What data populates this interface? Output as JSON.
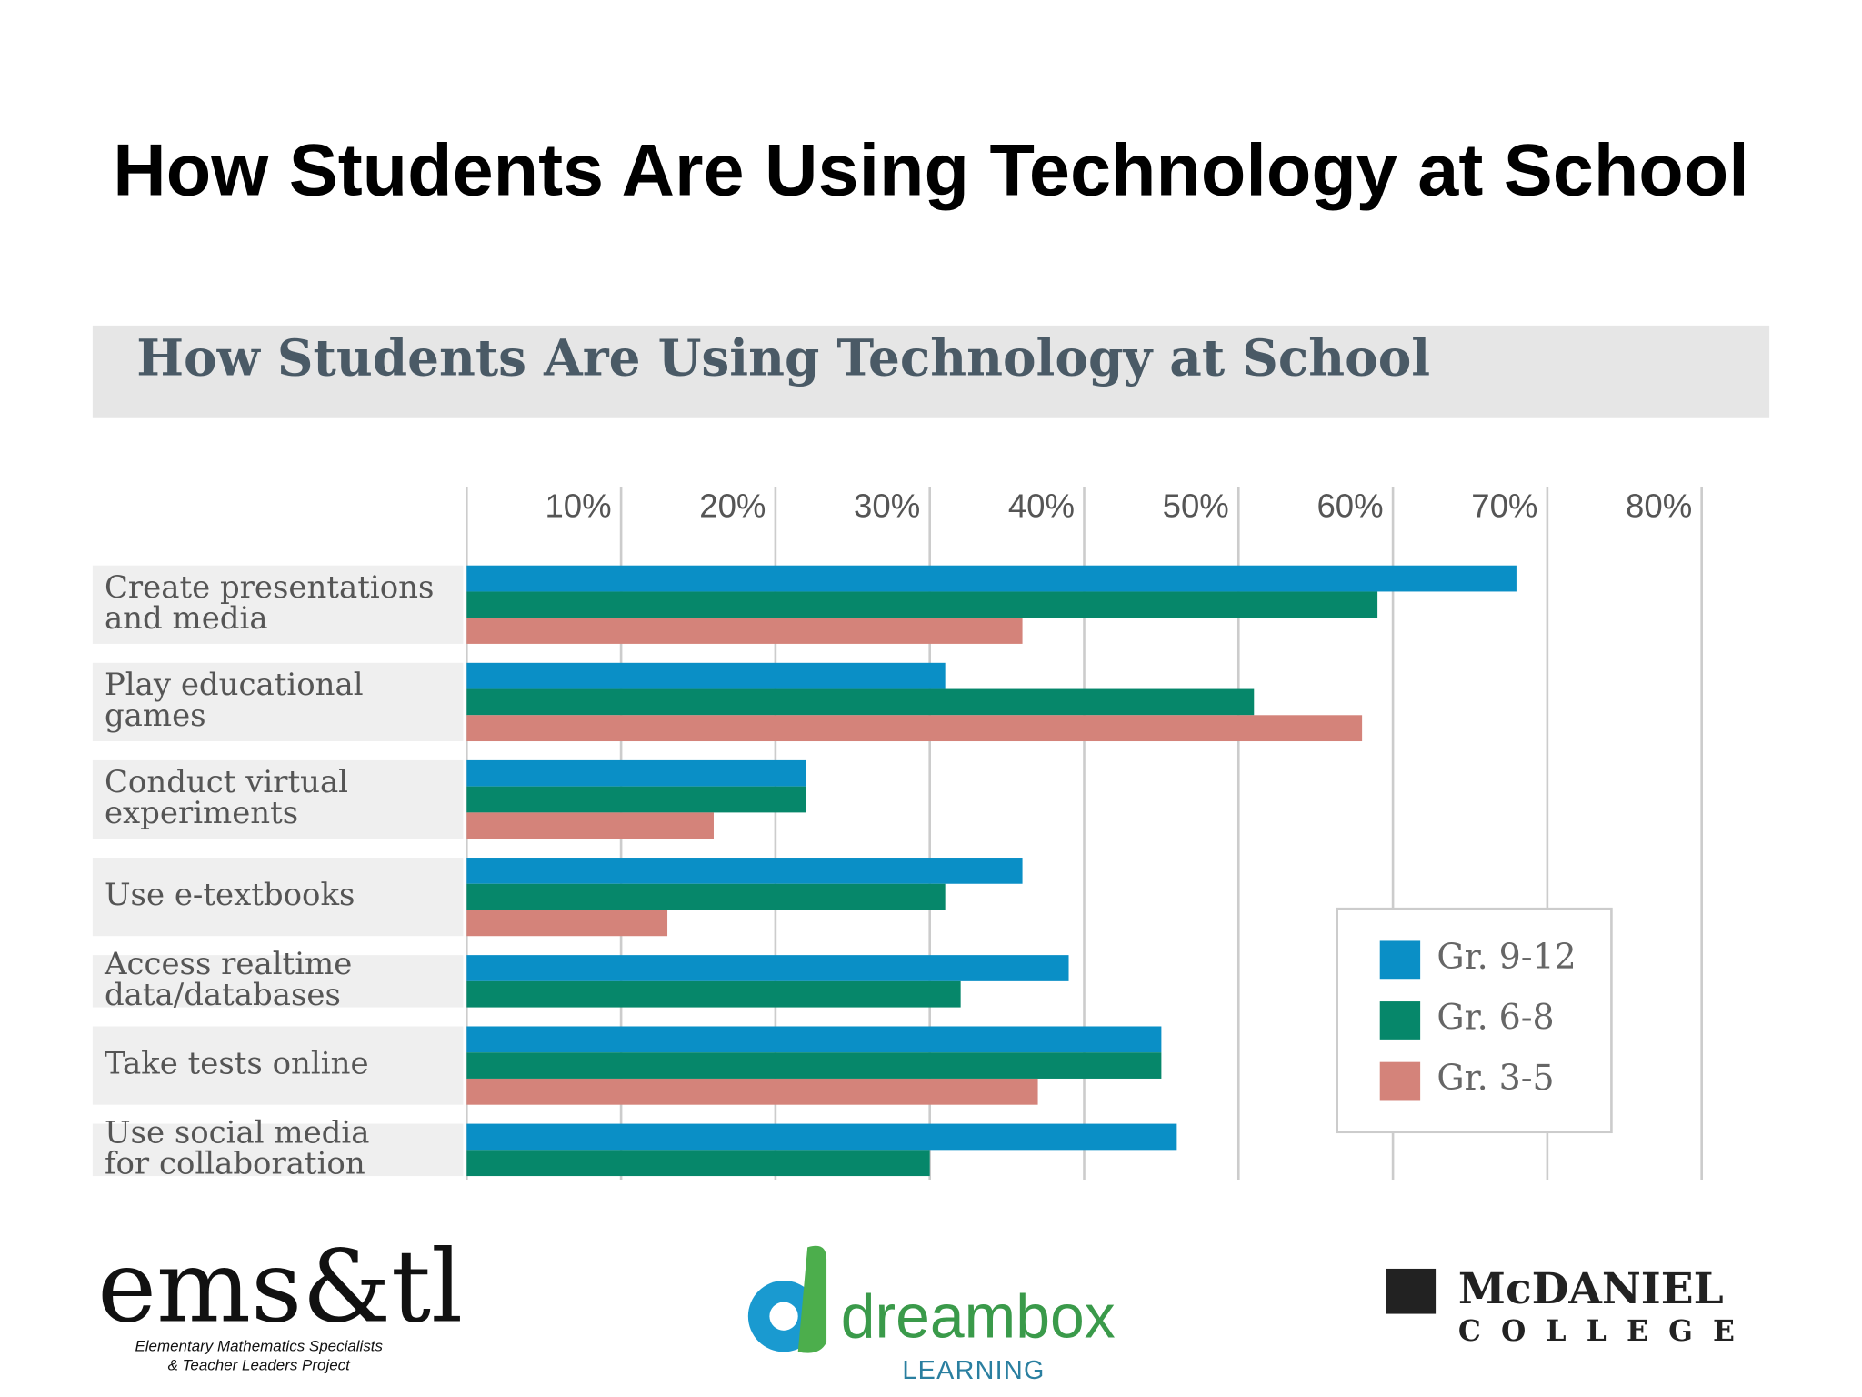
{
  "title": "How Students Are Using Technology at School",
  "chart_data": {
    "type": "bar",
    "orientation": "horizontal",
    "title": "How Students Are Using Technology at School",
    "categories": [
      "Create presentations and media",
      "Play educational games",
      "Conduct virtual experiments",
      "Use e-textbooks",
      "Access realtime data/databases",
      "Take tests online",
      "Use social media for collaboration"
    ],
    "series": [
      {
        "name": "Gr. 9-12",
        "color": "#0a8fc6",
        "values": [
          68,
          31,
          22,
          36,
          39,
          45,
          46
        ]
      },
      {
        "name": "Gr. 6-8",
        "color": "#06876a",
        "values": [
          59,
          51,
          22,
          31,
          32,
          45,
          30
        ]
      },
      {
        "name": "Gr. 3-5",
        "color": "#d4837a",
        "values": [
          36,
          58,
          16,
          13,
          null,
          37,
          null
        ]
      }
    ],
    "xlim": [
      0,
      80
    ],
    "xticks": [
      {
        "value": 10,
        "label": "10%"
      },
      {
        "value": 20,
        "label": "20%"
      },
      {
        "value": 30,
        "label": "30%"
      },
      {
        "value": 40,
        "label": "40%"
      },
      {
        "value": 50,
        "label": "50%"
      },
      {
        "value": 60,
        "label": "60%"
      },
      {
        "value": 70,
        "label": "70%"
      },
      {
        "value": 80,
        "label": "80%"
      }
    ],
    "grid": true,
    "legend": "lower right"
  },
  "logos": {
    "emstl": {
      "name": "ems&tl",
      "line1": "Elementary Mathematics Specialists",
      "line2": "& Teacher Leaders Project"
    },
    "dreambox": {
      "name": "dreambox",
      "sub": "LEARNING"
    },
    "mcdaniel": {
      "name": "McDANIEL",
      "sub": "COLLEGE"
    }
  }
}
